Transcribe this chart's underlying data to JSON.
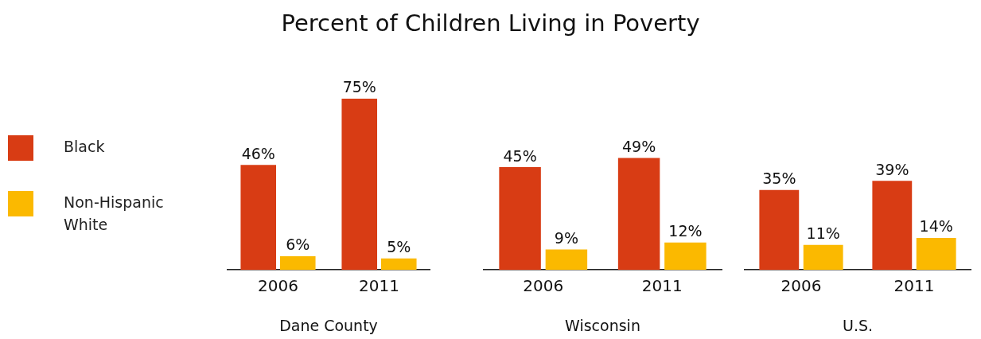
{
  "chart_data": [
    {
      "type": "bar",
      "title": "Percent of Children Living in Poverty",
      "xlabel": "Dane County",
      "categories": [
        "2006",
        "2011"
      ],
      "tick_labels": "x",
      "grid": false,
      "legend": "left",
      "series": [
        {
          "name": "Black",
          "color": "#d83c14",
          "values": [
            46,
            75
          ],
          "value_labels": [
            "46%",
            "75%"
          ]
        },
        {
          "name": "Non-Hispanic White",
          "color": "#fbb900",
          "values": [
            6,
            5
          ],
          "value_labels": [
            "6%",
            "5%"
          ]
        }
      ]
    },
    {
      "type": "bar",
      "xlabel": "Wisconsin",
      "categories": [
        "2006",
        "2011"
      ],
      "tick_labels": "x",
      "grid": false,
      "series": [
        {
          "color": "#d83c14",
          "values": [
            45,
            49
          ],
          "value_labels": [
            "45%",
            "49%"
          ]
        },
        {
          "color": "#fbb900",
          "values": [
            9,
            12
          ],
          "value_labels": [
            "9%",
            "12%"
          ]
        }
      ]
    },
    {
      "type": "bar",
      "xlabel": "U.S.",
      "categories": [
        "2006",
        "2011"
      ],
      "tick_labels": "x",
      "grid": false,
      "series": [
        {
          "color": "#d83c14",
          "values": [
            35,
            39
          ],
          "value_labels": [
            "35%",
            "39%"
          ]
        },
        {
          "color": "#fbb900",
          "values": [
            11,
            14
          ],
          "value_labels": [
            "11%",
            "14%"
          ]
        }
      ]
    }
  ]
}
